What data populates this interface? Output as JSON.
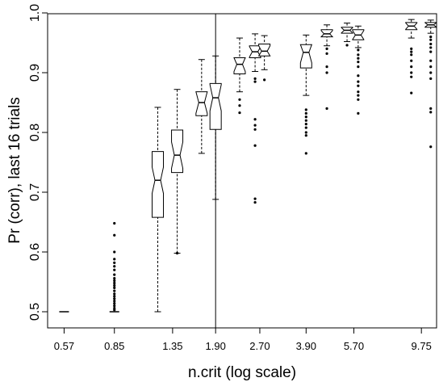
{
  "chart_data": {
    "type": "box",
    "xlabel": "n.crit (log scale)",
    "ylabel": "Pr (corr), last 16 trials",
    "ylim": [
      0.48,
      1.0
    ],
    "y_ticks": [
      0.5,
      0.6,
      0.7,
      0.8,
      0.9,
      1.0
    ],
    "x_tick_labels": [
      "0.57",
      "0.85",
      "1.35",
      "1.90",
      "2.70",
      "3.90",
      "5.70",
      "9.75"
    ],
    "notched": true,
    "vertical_reference_line_x": "1.90",
    "boxes": [
      {
        "x": 0.57,
        "min": 0.5,
        "q1": 0.5,
        "median": 0.5,
        "q3": 0.5,
        "max": 0.5,
        "outliers": []
      },
      {
        "x": 0.85,
        "min": 0.5,
        "q1": 0.5,
        "median": 0.5,
        "q3": 0.5,
        "max": 0.5,
        "outliers": [
          0.648,
          0.628,
          0.6,
          0.588,
          0.582,
          0.576,
          0.57,
          0.562,
          0.556,
          0.552,
          0.548,
          0.544,
          0.54,
          0.535,
          0.53,
          0.526,
          0.522,
          0.518,
          0.514,
          0.51,
          0.506,
          0.503
        ]
      },
      {
        "x": 1.2,
        "min": 0.5,
        "q1": 0.658,
        "median": 0.72,
        "q3": 0.768,
        "max": 0.842,
        "outliers": []
      },
      {
        "x": 1.4,
        "min": 0.598,
        "q1": 0.733,
        "median": 0.762,
        "q3": 0.804,
        "max": 0.872,
        "outliers": [
          0.598
        ]
      },
      {
        "x": 1.7,
        "min": 0.765,
        "q1": 0.828,
        "median": 0.85,
        "q3": 0.868,
        "max": 0.922,
        "outliers": []
      },
      {
        "x": 1.9,
        "min": 0.688,
        "q1": 0.805,
        "median": 0.858,
        "q3": 0.882,
        "max": 0.928,
        "outliers": []
      },
      {
        "x": 2.3,
        "min": 0.868,
        "q1": 0.898,
        "median": 0.914,
        "q3": 0.925,
        "max": 0.958,
        "outliers": [
          0.855,
          0.845,
          0.833
        ]
      },
      {
        "x": 2.6,
        "min": 0.902,
        "q1": 0.925,
        "median": 0.935,
        "q3": 0.945,
        "max": 0.965,
        "outliers": [
          0.89,
          0.885,
          0.822,
          0.812,
          0.805,
          0.778,
          0.689,
          0.683
        ]
      },
      {
        "x": 2.8,
        "min": 0.905,
        "q1": 0.928,
        "median": 0.936,
        "q3": 0.948,
        "max": 0.962,
        "outliers": [
          0.888
        ]
      },
      {
        "x": 3.9,
        "min": 0.862,
        "q1": 0.908,
        "median": 0.934,
        "q3": 0.947,
        "max": 0.963,
        "outliers": [
          0.838,
          0.832,
          0.826,
          0.82,
          0.814,
          0.808,
          0.8,
          0.795,
          0.765
        ]
      },
      {
        "x": 4.6,
        "min": 0.945,
        "q1": 0.96,
        "median": 0.965,
        "q3": 0.972,
        "max": 0.98,
        "outliers": [
          0.94,
          0.932,
          0.91,
          0.9,
          0.84
        ]
      },
      {
        "x": 5.4,
        "min": 0.952,
        "q1": 0.966,
        "median": 0.971,
        "q3": 0.976,
        "max": 0.983,
        "outliers": [
          0.946
        ]
      },
      {
        "x": 5.9,
        "min": 0.942,
        "q1": 0.955,
        "median": 0.963,
        "q3": 0.972,
        "max": 0.978,
        "outliers": [
          0.938,
          0.93,
          0.924,
          0.918,
          0.91,
          0.895,
          0.885,
          0.878,
          0.868,
          0.862,
          0.855,
          0.832
        ]
      },
      {
        "x": 9.0,
        "min": 0.958,
        "q1": 0.972,
        "median": 0.978,
        "q3": 0.984,
        "max": 0.989,
        "outliers": [
          0.94,
          0.935,
          0.93,
          0.92,
          0.91,
          0.9,
          0.893,
          0.866
        ]
      },
      {
        "x": 10.5,
        "min": 0.966,
        "q1": 0.976,
        "median": 0.98,
        "q3": 0.984,
        "max": 0.988,
        "outliers": [
          0.96,
          0.955,
          0.948,
          0.942,
          0.935,
          0.92,
          0.91,
          0.9,
          0.89,
          0.84,
          0.834,
          0.776
        ]
      }
    ]
  }
}
